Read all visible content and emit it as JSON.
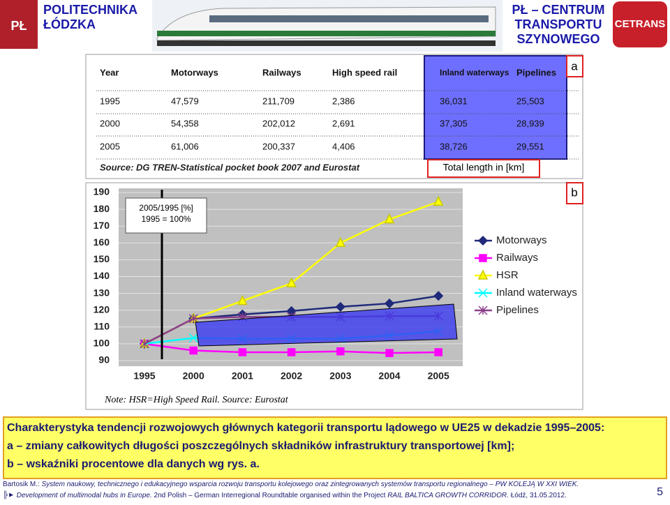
{
  "header": {
    "left": "POLITECHNIKA ŁÓDZKA",
    "right": "PŁ – CENTRUM TRANSPORTU SZYNOWEGO",
    "logo": "CETRANS"
  },
  "table": {
    "label": "a",
    "columns": [
      "Year",
      "Motorways",
      "Railways",
      "High speed rail",
      "Inland waterways",
      "Pipelines"
    ],
    "rows": [
      [
        "1995",
        "47,579",
        "211,709",
        "2,386",
        "36,031",
        "25,503"
      ],
      [
        "2000",
        "54,358",
        "202,012",
        "2,691",
        "37,305",
        "28,939"
      ],
      [
        "2005",
        "61,006",
        "200,337",
        "4,406",
        "38,726",
        "29,551"
      ]
    ],
    "source": "Source: DG TREN-Statistical pocket book 2007 and Eurostat",
    "unit_note": "Total length in [km]"
  },
  "chart_data": {
    "type": "line",
    "label": "b",
    "annotation": [
      "2005/1995 [%]",
      "1995 = 100%"
    ],
    "note": "Note: HSR=High Speed Rail. Source: Eurostat",
    "categories": [
      "1995",
      "2000",
      "2001",
      "2002",
      "2003",
      "2004",
      "2005"
    ],
    "ylim": [
      90,
      190
    ],
    "yticks": [
      90,
      100,
      110,
      120,
      130,
      140,
      150,
      160,
      170,
      180,
      190
    ],
    "grid": true,
    "series": [
      {
        "name": "Motorways",
        "color": "#1f2a7a",
        "marker": "diamond",
        "values": [
          100,
          115,
          117.5,
          119.5,
          122,
          124,
          128.5
        ]
      },
      {
        "name": "Railways",
        "color": "#ff00ff",
        "marker": "square",
        "values": [
          100,
          96,
          95,
          95,
          95.5,
          94.5,
          95
        ]
      },
      {
        "name": "HSR",
        "color": "#ffff00",
        "marker": "triangle",
        "values": [
          100,
          115,
          125.5,
          136,
          160,
          174,
          184.5
        ]
      },
      {
        "name": "Inland waterways",
        "color": "#00ffff",
        "marker": "x",
        "values": [
          100,
          103.5,
          103,
          103,
          103,
          105,
          107.5
        ]
      },
      {
        "name": "Pipelines",
        "color": "#8b3f8b",
        "marker": "star",
        "values": [
          100,
          115,
          116,
          116,
          116,
          116.5,
          116.5
        ]
      }
    ]
  },
  "caption": [
    "Charakterystyka tendencji rozwojowych głównych kategorii transportu lądowego w UE25 w dekadzie 1995–2005:",
    "a – zmiany całkowitych długości poszczególnych składników infrastruktury transportowej [km];",
    "b – wskaźniki procentowe dla danych wg rys. a."
  ],
  "footer": {
    "author": "Bartosik M.:",
    "work": "System naukowy, technicznego i edukacyjnego wsparcia rozwoju transportu kolejowego oraz zintegrowanych systemów transportu regionalnego – PW KOLEJĄ W XXI WIEK.",
    "event": "Development of multimodal hubs in Europe.",
    "roundtable": "2nd Polish – German Interregional Roundtable organised within the Project",
    "project": "RAIL BALTICA GROWTH CORRIDOR.",
    "place": "Łódź, 31.05.2012.",
    "page": "5"
  }
}
